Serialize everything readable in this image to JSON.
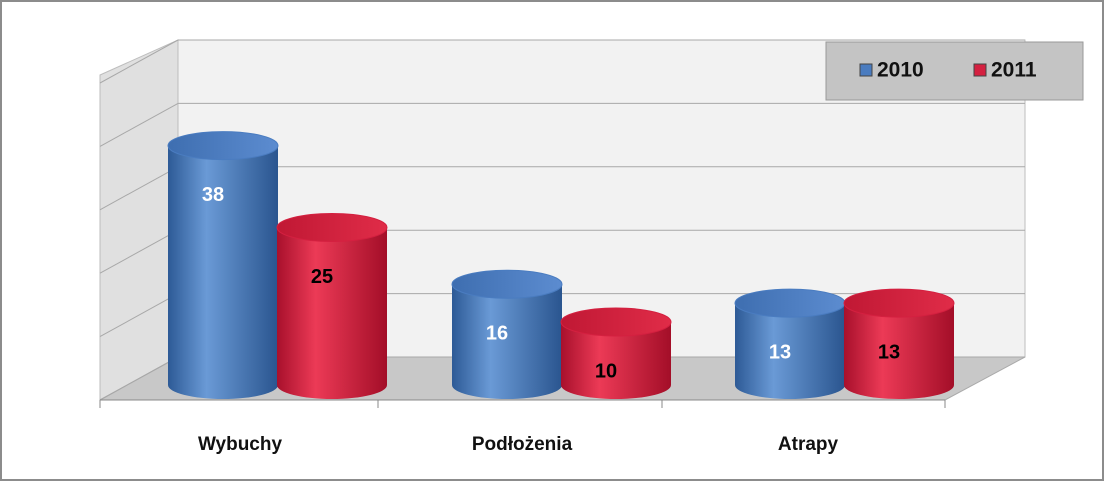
{
  "chart_data": {
    "type": "bar3d",
    "categories": [
      "Wybuchy",
      "Podłożenia",
      "Atrapy"
    ],
    "series": [
      {
        "name": "2010",
        "color": "#4a7cc0",
        "values": [
          38,
          16,
          13
        ]
      },
      {
        "name": "2011",
        "color": "#d42040",
        "values": [
          25,
          10,
          13
        ]
      }
    ],
    "ylim": [
      0,
      50
    ],
    "yticks": [
      0,
      10,
      20,
      30,
      40,
      50
    ],
    "grid": true,
    "legend": "top-right"
  }
}
